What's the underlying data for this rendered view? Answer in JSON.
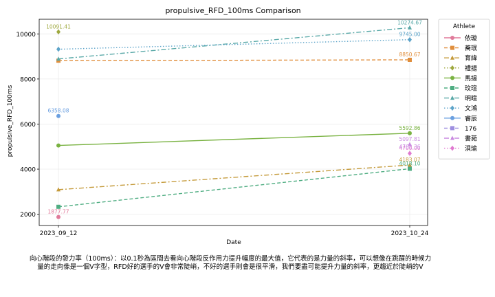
{
  "chart_data": {
    "type": "line",
    "title": "propulsive_RFD_100ms Comparison",
    "xlabel": "Date",
    "ylabel": "propulsive_RFD_100ms",
    "x": [
      "2023_09_12",
      "2023_10_24"
    ],
    "ylim": [
      1500,
      10650
    ],
    "yticks": [
      2000,
      4000,
      6000,
      8000,
      10000
    ],
    "grid": true,
    "legend": {
      "title": "Athlete",
      "placement": "outside-right"
    },
    "series": [
      {
        "name": "依璇",
        "color": "#e07a9a",
        "dash": "solid",
        "marker": "circle",
        "values": [
          1877.77,
          null
        ],
        "labels": [
          "1877.77",
          ""
        ]
      },
      {
        "name": "蕎珉",
        "color": "#e08e3c",
        "dash": "dashed",
        "marker": "square",
        "values": [
          8810,
          8850.67
        ],
        "labels": [
          "",
          "8850.67"
        ]
      },
      {
        "name": "育緯",
        "color": "#c49a3a",
        "dash": "dashdot",
        "marker": "triangle",
        "values": [
          3090,
          4183.07
        ],
        "labels": [
          "",
          "4183.07"
        ]
      },
      {
        "name": "禮揚",
        "color": "#9ea83e",
        "dash": "dotted",
        "marker": "diamond",
        "values": [
          10091.41,
          null
        ],
        "labels": [
          "10091.41",
          ""
        ]
      },
      {
        "name": "馬揚",
        "color": "#79b241",
        "dash": "solid",
        "marker": "circle",
        "values": [
          5050,
          5592.86
        ],
        "labels": [
          "",
          "5592.86"
        ]
      },
      {
        "name": "玟瑄",
        "color": "#4fad82",
        "dash": "dashed",
        "marker": "square",
        "values": [
          2330,
          4018.1
        ],
        "labels": [
          "",
          "4018.10"
        ]
      },
      {
        "name": "明暄",
        "color": "#5aa9a8",
        "dash": "dashdot",
        "marker": "triangle",
        "values": [
          8890,
          10274.67
        ],
        "labels": [
          "",
          "10274.67"
        ]
      },
      {
        "name": "文鴻",
        "color": "#5ea4c9",
        "dash": "dotted",
        "marker": "diamond",
        "values": [
          9320,
          9745.0
        ],
        "labels": [
          "",
          "9745.00"
        ]
      },
      {
        "name": "睿辰",
        "color": "#6a9fe0",
        "dash": "solid",
        "marker": "circle",
        "values": [
          6358.08,
          null
        ],
        "labels": [
          "6358.08",
          ""
        ]
      },
      {
        "name": "176",
        "color": "#9e8fe0",
        "dash": "dashed",
        "marker": "square",
        "values": [
          null,
          null
        ],
        "labels": [
          "",
          ""
        ]
      },
      {
        "name": "書菀",
        "color": "#c98ae0",
        "dash": "dashdot",
        "marker": "triangle",
        "values": [
          null,
          5097.81
        ],
        "labels": [
          "",
          "5097.81"
        ]
      },
      {
        "name": "浿瑜",
        "color": "#e07ad0",
        "dash": "dotted",
        "marker": "diamond",
        "values": [
          null,
          4700.0
        ],
        "labels": [
          "",
          "4700.00"
        ]
      }
    ],
    "extra_labels": [
      {
        "x": "2023_10_24",
        "y": 4762.36,
        "text": "4762.36",
        "color": "#c98ae0"
      }
    ]
  },
  "caption": "向心階段的發力率（100ms）：以0.1秒為區間去看向心階段反作用力提升幅度的最大值，它代表的是力量的斜率，可以想像在跳躍的時候力量的走向像是一個V字型，RFD好的選手的V會非常陡峭，不好的選手則會是很平滑，我們要盡可能提升力量的斜率，更趨近於陡峭的V"
}
